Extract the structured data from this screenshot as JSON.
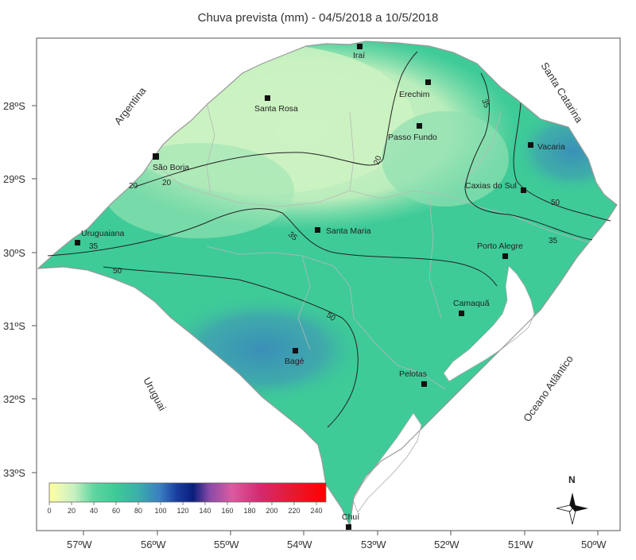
{
  "title": "Chuva prevista (mm) - 04/5/2018 a 10/5/2018",
  "regions": {
    "argentina": "Argentina",
    "uruguai": "Uruguai",
    "santa_catarina": "Santa Catarina",
    "oceano": "Oceano Atlântico"
  },
  "cities": [
    {
      "name": "Iraí"
    },
    {
      "name": "Erechim"
    },
    {
      "name": "Santa Rosa"
    },
    {
      "name": "Passo Fundo"
    },
    {
      "name": "Vacaria"
    },
    {
      "name": "São Borja"
    },
    {
      "name": "Caxias do Sul"
    },
    {
      "name": "Uruguaiana"
    },
    {
      "name": "Santa Maria"
    },
    {
      "name": "Porto Alegre"
    },
    {
      "name": "Camaquã"
    },
    {
      "name": "Bagé"
    },
    {
      "name": "Pelotas"
    },
    {
      "name": "Chuí"
    }
  ],
  "isolines": {
    "l20": "20",
    "l35": "35",
    "l50": "50"
  },
  "axes": {
    "lat": [
      "28ºS",
      "29ºS",
      "30ºS",
      "31ºS",
      "32ºS",
      "33ºS"
    ],
    "lon": [
      "57ºW",
      "56ºW",
      "55ºW",
      "54ºW",
      "53ºW",
      "52ºW",
      "51ºW",
      "50ºW"
    ]
  },
  "colorbar": {
    "ticks": [
      "0",
      "20",
      "40",
      "60",
      "80",
      "100",
      "120",
      "140",
      "160",
      "180",
      "200",
      "220",
      "240"
    ],
    "stops": [
      "#ffff99",
      "#d8f5c0",
      "#8fe0b0",
      "#3ecb98",
      "#3aa8b0",
      "#3a7fc0",
      "#1a3fa0",
      "#0a1f80",
      "#9a4aa0",
      "#e04a9a",
      "#d81b60",
      "#e8101a",
      "#ff0000"
    ]
  },
  "north": "N"
}
